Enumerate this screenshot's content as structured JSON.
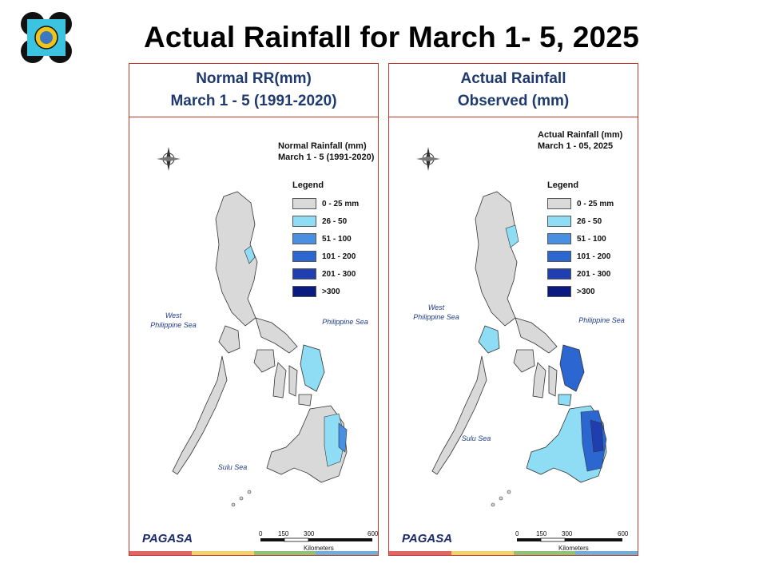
{
  "slide": {
    "title": "Actual Rainfall for March 1- 5, 2025"
  },
  "colors": {
    "bin_0_25": "#d9d9d9",
    "bin_26_50": "#8fdcf5",
    "bin_51_100": "#4a90e2",
    "bin_101_200": "#2b66d1",
    "bin_201_300": "#1f3fb0",
    "bin_300_plus": "#0a1a80",
    "panel_border": "#c0392b",
    "header_text": "#1f3a6e"
  },
  "panels": [
    {
      "header_line1": "Normal RR(mm)",
      "header_line2": "March 1 - 5 (1991-2020)",
      "map_title_line1": "Normal Rainfall (mm)",
      "map_title_line2": "March 1 - 5  (1991-2020)"
    },
    {
      "header_line1": "Actual Rainfall",
      "header_line2": "Observed  (mm)",
      "map_title_line1": "Actual Rainfall (mm)",
      "map_title_line2": "March 1 - 05, 2025"
    }
  ],
  "legend": {
    "title": "Legend",
    "items": [
      {
        "label": "0 - 25 mm",
        "color": "#d9d9d9"
      },
      {
        "label": "26 - 50",
        "color": "#8fdcf5"
      },
      {
        "label": "51 - 100",
        "color": "#4a90e2"
      },
      {
        "label": "101 - 200",
        "color": "#2b66d1"
      },
      {
        "label": "201 - 300",
        "color": "#1f3fb0"
      },
      {
        "label": ">300",
        "color": "#0a1a80"
      }
    ]
  },
  "seas": {
    "west": "West\nPhilippine Sea",
    "east": "Philippine Sea",
    "sulu": "Sulu Sea"
  },
  "scale": {
    "ticks": [
      "0",
      "150",
      "300",
      "600"
    ],
    "unit": "Kilometers"
  },
  "compass": {
    "n": "N",
    "s": "S",
    "e": "E",
    "w": "W"
  },
  "agency": {
    "name": "PAGASA"
  }
}
